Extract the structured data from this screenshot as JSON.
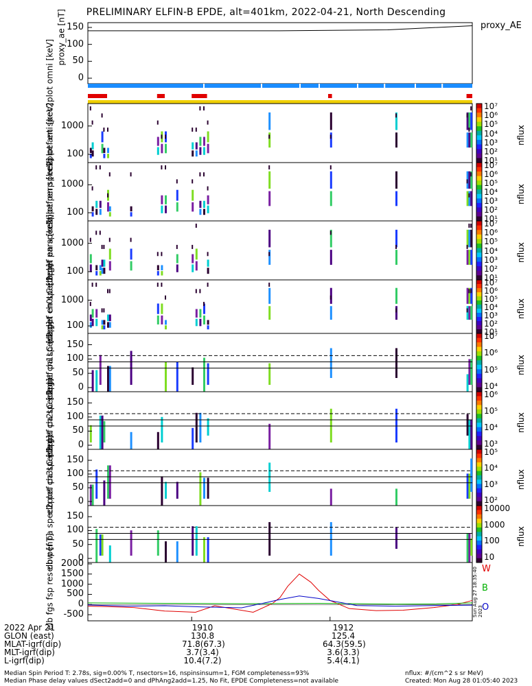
{
  "title": "PRELIMINARY ELFIN-B EPDE, alt=401km, 2022-04-21, North Descending",
  "proxy": {
    "legend": "proxy_AE",
    "ylabel": [
      "proxy_ae",
      "[nT]"
    ],
    "yticks": [
      "150",
      "100",
      "50",
      "0"
    ]
  },
  "panels": [
    {
      "ylabel": [
        "elb",
        "pef",
        "en",
        "spec2plot",
        "omni",
        "[keV]"
      ],
      "yticks": [
        "1000",
        "100"
      ],
      "cb_ticks": [
        "10⁷",
        "10⁶",
        "10⁵",
        "10⁴",
        "10³",
        "10²",
        "10¹"
      ],
      "cb_label": "nflux"
    },
    {
      "ylabel": [
        "elb",
        "pef",
        "en",
        "spec2plot",
        "anti",
        "[keV]"
      ],
      "yticks": [
        "1000",
        "100"
      ],
      "cb_ticks": [
        "10⁷",
        "10⁶",
        "10⁵",
        "10⁴",
        "10³",
        "10²",
        "10¹"
      ],
      "cb_label": "nflux"
    },
    {
      "ylabel": [
        "elb",
        "pef",
        "en",
        "spec2plot",
        "perp",
        "[keV]"
      ],
      "yticks": [
        "1000",
        "100"
      ],
      "cb_ticks": [
        "10⁷",
        "10⁶",
        "10⁵",
        "10⁴",
        "10³",
        "10²",
        "10¹"
      ],
      "cb_label": "nflux"
    },
    {
      "ylabel": [
        "elb",
        "pef",
        "en",
        "spec2plot",
        "para",
        "[keV]"
      ],
      "yticks": [
        "1000",
        "100"
      ],
      "cb_ticks": [
        "10⁷",
        "10⁶",
        "10⁵",
        "10⁴",
        "10³",
        "10²",
        "10¹"
      ],
      "cb_label": "nflux"
    },
    {
      "ylabel": [
        "elb",
        "pef",
        "pa",
        "spec2plot",
        "ch0LC",
        "[deg]"
      ],
      "yticks": [
        "150",
        "100",
        "50",
        "0"
      ],
      "cb_ticks": [
        "10⁷",
        "10⁶",
        "10⁵",
        "10⁴"
      ],
      "cb_label": "nflux"
    },
    {
      "ylabel": [
        "elb",
        "pef",
        "pa",
        "spec2plot",
        "ch1LC",
        "[deg]"
      ],
      "yticks": [
        "150",
        "100",
        "50",
        "0"
      ],
      "cb_ticks": [
        "10⁶",
        "10⁵",
        "10⁴",
        "10³"
      ],
      "cb_label": "nflux"
    },
    {
      "ylabel": [
        "elb",
        "pef",
        "pa",
        "spec2plot",
        "ch2LC",
        "[deg]"
      ],
      "yticks": [
        "150",
        "100",
        "50",
        "0"
      ],
      "cb_ticks": [
        "10⁵",
        "10⁴",
        "10³",
        "10²"
      ],
      "cb_label": "nflux"
    },
    {
      "ylabel": [
        "elb",
        "pef",
        "pa",
        "spec2plot",
        "ch3LC",
        "[deg]"
      ],
      "yticks": [
        "150",
        "100",
        "50",
        "0"
      ],
      "cb_ticks": [
        "10000",
        "1000",
        "100",
        "10"
      ],
      "cb_label": "nflux"
    }
  ],
  "mag": {
    "ylabel": [
      "elb",
      "fgs",
      "fsp",
      "res",
      "obw",
      "[nT]"
    ],
    "yticks": [
      "2000",
      "1500",
      "1000",
      "500",
      "0",
      "-500"
    ],
    "legend": [
      "W",
      "B",
      "O"
    ],
    "legend_colors": [
      "#e00000",
      "#00b000",
      "#0000c8"
    ],
    "side_text": "Sun Aug 27 18:35:40 2023"
  },
  "chart_data": {
    "type": "line",
    "title": "PRELIMINARY ELFIN-B EPDE, alt=401km, 2022-04-21, North Descending",
    "series": [
      {
        "name": "proxy_AE",
        "x": [
          0.0,
          0.5,
          0.78,
          1.0
        ],
        "values": [
          140,
          140,
          143,
          155
        ]
      },
      {
        "name": "W",
        "x": [
          0,
          0.05,
          0.12,
          0.2,
          0.28,
          0.33,
          0.38,
          0.43,
          0.48,
          0.5,
          0.52,
          0.55,
          0.58,
          0.6,
          0.63,
          0.68,
          0.75,
          0.82,
          0.9,
          0.96,
          1.0
        ],
        "values": [
          -80,
          -100,
          -150,
          -320,
          -380,
          -60,
          -220,
          -380,
          50,
          350,
          900,
          1500,
          1100,
          700,
          200,
          -200,
          -300,
          -280,
          -150,
          0,
          200
        ]
      },
      {
        "name": "B",
        "x": [
          0,
          0.2,
          0.4,
          0.5,
          0.6,
          0.7,
          0.8,
          0.9,
          1.0
        ],
        "values": [
          80,
          60,
          40,
          50,
          60,
          40,
          20,
          30,
          80
        ]
      },
      {
        "name": "O",
        "x": [
          0,
          0.1,
          0.2,
          0.3,
          0.4,
          0.46,
          0.5,
          0.55,
          0.6,
          0.7,
          0.8,
          0.9,
          1.0
        ],
        "values": [
          -20,
          -80,
          -60,
          -120,
          -160,
          80,
          250,
          420,
          300,
          -50,
          -80,
          -50,
          -30
        ]
      }
    ],
    "x_ticks": [
      "1910",
      "1912"
    ],
    "ylim": [
      -600,
      2000
    ]
  },
  "footer": {
    "row_labels": [
      "2022 Apr 21",
      "GLON (east)",
      "MLAT-igrf(dip)",
      "MLT-igrf(dip)",
      "L-igrf(dip)"
    ],
    "col1": [
      "1910",
      "130.8",
      "71.8(67.3)",
      "3.7(3.4)",
      "10.4(7.2)"
    ],
    "col2": [
      "1912",
      "125.4",
      "64.3(59.5)",
      "3.6(3.3)",
      "5.4(4.1)"
    ],
    "line1": "Median Spin Period T: 2.78s, sig=0.00% T, nsectors=16, nspinsinsum=1, FGM completeness=93%",
    "line2": "Median Phase delay values dSect2add=0 and dPhAng2add=1.25, No Fit, EPDE Completeness=not available",
    "right1": "nflux: #/(cm^2 s sr MeV)",
    "right2": "Created: Mon Aug 28 01:05:40 2023"
  }
}
